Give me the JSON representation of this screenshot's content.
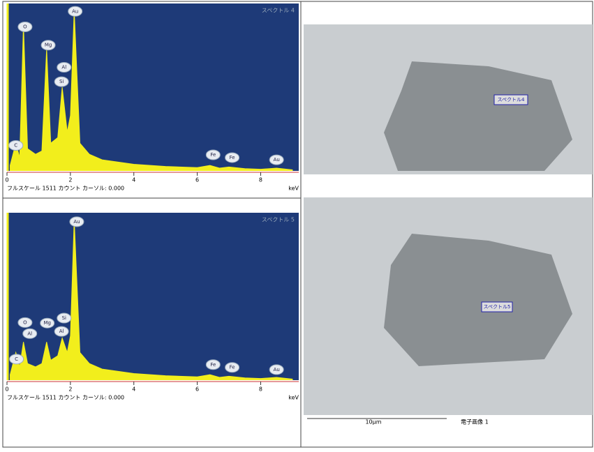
{
  "chart_data": [
    {
      "type": "line",
      "title": "スペクトル 4",
      "color": "#f2ee1c",
      "background": "#1e3a78",
      "x": [
        0.1,
        0.28,
        0.4,
        0.52,
        0.65,
        0.9,
        1.1,
        1.25,
        1.38,
        1.6,
        1.74,
        1.9,
        2.0,
        2.12,
        2.3,
        2.6,
        3,
        4,
        5,
        6,
        6.4,
        6.7,
        7.0,
        7.5,
        8,
        8.5,
        9
      ],
      "values": [
        50,
        250,
        120,
        1320,
        200,
        150,
        180,
        1100,
        250,
        300,
        755,
        350,
        500,
        1450,
        250,
        150,
        100,
        60,
        40,
        30,
        50,
        25,
        35,
        20,
        15,
        25,
        10
      ],
      "xlim": [
        0,
        9.2
      ],
      "xticks": [
        0,
        2,
        4,
        6,
        8
      ],
      "ylim": [
        0,
        1511
      ],
      "x_label": "keV",
      "footer": "フルスケール 1511 カウント カーソル: 0.000",
      "annotations": [
        {
          "text": "C",
          "x": 0.28,
          "y": 230
        },
        {
          "text": "O",
          "x": 0.57,
          "y": 1300
        },
        {
          "text": "Mg",
          "x": 1.3,
          "y": 1135
        },
        {
          "text": "Al",
          "x": 1.8,
          "y": 935
        },
        {
          "text": "Si",
          "x": 1.72,
          "y": 805
        },
        {
          "text": "Au",
          "x": 2.15,
          "y": 1440
        },
        {
          "text": "Fe",
          "x": 6.5,
          "y": 145
        },
        {
          "text": "Fe",
          "x": 7.1,
          "y": 120
        },
        {
          "text": "Au",
          "x": 8.5,
          "y": 100
        }
      ]
    },
    {
      "type": "line",
      "title": "スペクトル 5",
      "color": "#f2ee1c",
      "background": "#1e3a78",
      "x": [
        0.1,
        0.28,
        0.4,
        0.52,
        0.65,
        0.9,
        1.1,
        1.25,
        1.38,
        1.6,
        1.74,
        1.9,
        2.0,
        2.12,
        2.3,
        2.6,
        3,
        4,
        5,
        6,
        6.4,
        6.7,
        7.0,
        7.5,
        8,
        8.5,
        9
      ],
      "values": [
        50,
        250,
        120,
        345,
        150,
        120,
        150,
        345,
        180,
        220,
        380,
        250,
        400,
        1450,
        250,
        150,
        100,
        60,
        40,
        30,
        50,
        25,
        35,
        20,
        15,
        25,
        10
      ],
      "xlim": [
        0,
        9.2
      ],
      "xticks": [
        0,
        2,
        4,
        6,
        8
      ],
      "ylim": [
        0,
        1511
      ],
      "x_label": "keV",
      "footer": "フルスケール 1511 カウント カーソル: 0.000",
      "annotations": [
        {
          "text": "C",
          "x": 0.3,
          "y": 190
        },
        {
          "text": "O",
          "x": 0.57,
          "y": 520
        },
        {
          "text": "Al",
          "x": 0.72,
          "y": 420
        },
        {
          "text": "Mg",
          "x": 1.27,
          "y": 515
        },
        {
          "text": "Si",
          "x": 1.8,
          "y": 560
        },
        {
          "text": "Al",
          "x": 1.72,
          "y": 440
        },
        {
          "text": "Au",
          "x": 2.2,
          "y": 1430
        },
        {
          "text": "Fe",
          "x": 6.5,
          "y": 140
        },
        {
          "text": "Fe",
          "x": 7.1,
          "y": 115
        },
        {
          "text": "Au",
          "x": 8.5,
          "y": 95
        }
      ]
    }
  ],
  "images": [
    {
      "label": "スペクトル4"
    },
    {
      "label": "スペクトル5"
    }
  ],
  "scale_bar": "10µm",
  "image_caption": "電子画像 1"
}
